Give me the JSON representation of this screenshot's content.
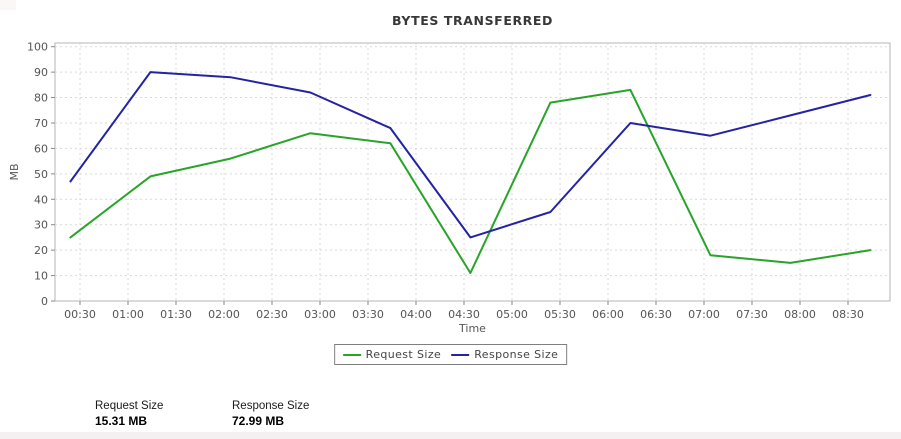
{
  "chart": {
    "title": "BYTES TRANSFERRED",
    "colors": {
      "request": "#28a428",
      "response": "#2323a5",
      "grid": "#d9d9d9",
      "border": "#b5b5b5",
      "tick": "#8a8a8a",
      "tick_label": "#555555",
      "title_color": "#383838"
    }
  },
  "chart_data": {
    "type": "line",
    "title": "BYTES TRANSFERRED",
    "xlabel": "Time",
    "ylabel": "MB",
    "x": [
      "00:24",
      "01:14",
      "02:04",
      "02:54",
      "03:44",
      "04:34",
      "05:24",
      "06:14",
      "07:04",
      "07:54",
      "08:44"
    ],
    "series": [
      {
        "name": "Request Size",
        "color": "#28a428",
        "values": [
          25,
          49,
          56,
          66,
          62,
          11,
          78,
          83,
          18,
          15,
          20
        ]
      },
      {
        "name": "Response Size",
        "color": "#2323a5",
        "values": [
          47,
          90,
          88,
          82,
          68,
          25,
          35,
          70,
          65,
          73,
          81
        ]
      }
    ],
    "x_ticks": [
      "00:30",
      "01:00",
      "01:30",
      "02:00",
      "02:30",
      "03:00",
      "03:30",
      "04:00",
      "04:30",
      "05:00",
      "05:30",
      "06:00",
      "06:30",
      "07:00",
      "07:30",
      "08:00",
      "08:30"
    ],
    "ylim": [
      0,
      100
    ],
    "y_tick_step": 10,
    "grid": true,
    "grid_style": "dotted",
    "legend_position": "bottom",
    "legend_border": true
  },
  "stats": [
    {
      "label": "Request Size",
      "value": "15.31 MB"
    },
    {
      "label": "Response Size",
      "value": "72.99 MB"
    }
  ]
}
